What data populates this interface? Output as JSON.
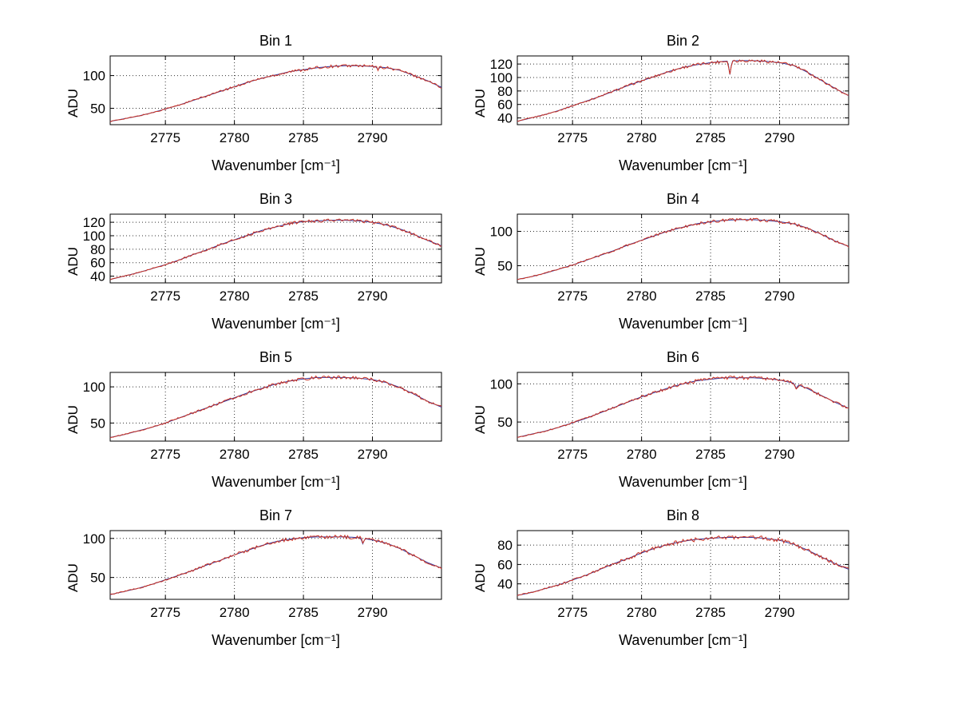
{
  "figure": {
    "background": "#ffffff",
    "description": "Eight line subplots (4 rows x 2 columns) of spectra per bin"
  },
  "chart_data": {
    "type": "line",
    "layout": "4x2-grid",
    "grid": "dotted",
    "x_label": "Wavenumber [cm⁻¹]",
    "y_label": "ADU",
    "xlim": [
      2771,
      2795
    ],
    "x_ticks": [
      2775,
      2780,
      2785,
      2790
    ],
    "x": [
      2771,
      2772,
      2773,
      2774,
      2775,
      2776,
      2777,
      2778,
      2779,
      2780,
      2781,
      2782,
      2783,
      2784,
      2785,
      2786,
      2787,
      2788,
      2789,
      2790,
      2791,
      2792,
      2793,
      2794,
      2795
    ],
    "colors": {
      "trace": "#cc3322",
      "under_trace": "#333399",
      "axis": "#000000",
      "grid": "#333333"
    },
    "noise_amp_adu": 1.6,
    "plots": [
      {
        "title": "Bin 1",
        "ylim": [
          25,
          130
        ],
        "y_ticks": [
          50,
          100
        ],
        "values": [
          30,
          34,
          38,
          43,
          49,
          55,
          62,
          69,
          76,
          83,
          90,
          96,
          101,
          106,
          109,
          112,
          114,
          115,
          115,
          114,
          112,
          108,
          100,
          92,
          82
        ],
        "dips": [
          {
            "x": 2790.4,
            "depth": 4
          }
        ]
      },
      {
        "title": "Bin 2",
        "ylim": [
          30,
          132
        ],
        "y_ticks": [
          40,
          60,
          80,
          100,
          120
        ],
        "values": [
          35,
          40,
          45,
          51,
          58,
          65,
          72,
          80,
          88,
          95,
          102,
          109,
          115,
          119,
          122,
          124,
          125,
          125,
          124,
          122,
          118,
          108,
          96,
          84,
          73
        ],
        "dips": [
          {
            "x": 2786.4,
            "depth": 20
          }
        ]
      },
      {
        "title": "Bin 3",
        "ylim": [
          30,
          132
        ],
        "y_ticks": [
          40,
          60,
          80,
          100,
          120
        ],
        "values": [
          35,
          40,
          45,
          51,
          57,
          64,
          72,
          79,
          87,
          94,
          101,
          108,
          113,
          118,
          121,
          122,
          123,
          123,
          122,
          120,
          116,
          110,
          102,
          93,
          85
        ],
        "dips": []
      },
      {
        "title": "Bin 4",
        "ylim": [
          25,
          125
        ],
        "y_ticks": [
          50,
          100
        ],
        "values": [
          30,
          34,
          39,
          45,
          51,
          58,
          65,
          72,
          80,
          87,
          94,
          101,
          106,
          111,
          114,
          116,
          117,
          117,
          116,
          114,
          111,
          105,
          96,
          86,
          78
        ],
        "dips": []
      },
      {
        "title": "Bin 5",
        "ylim": [
          25,
          120
        ],
        "y_ticks": [
          50,
          100
        ],
        "values": [
          30,
          34,
          39,
          44,
          50,
          57,
          64,
          71,
          78,
          85,
          92,
          98,
          104,
          108,
          111,
          113,
          113,
          113,
          112,
          110,
          106,
          99,
          90,
          80,
          72
        ],
        "dips": []
      },
      {
        "title": "Bin 6",
        "ylim": [
          25,
          115
        ],
        "y_ticks": [
          50,
          100
        ],
        "values": [
          30,
          34,
          38,
          43,
          49,
          55,
          62,
          69,
          76,
          83,
          89,
          95,
          100,
          104,
          106,
          108,
          108,
          108,
          107,
          105,
          101,
          94,
          85,
          76,
          68
        ],
        "dips": [
          {
            "x": 2791.2,
            "depth": 6
          }
        ]
      },
      {
        "title": "Bin 7",
        "ylim": [
          22,
          110
        ],
        "y_ticks": [
          50,
          100
        ],
        "values": [
          28,
          32,
          36,
          41,
          47,
          53,
          59,
          66,
          72,
          79,
          85,
          91,
          96,
          99,
          101,
          102,
          102,
          102,
          101,
          98,
          94,
          87,
          78,
          69,
          62
        ],
        "dips": [
          {
            "x": 2789.3,
            "depth": 7
          }
        ]
      },
      {
        "title": "Bin 8",
        "ylim": [
          24,
          95
        ],
        "y_ticks": [
          40,
          60,
          80
        ],
        "values": [
          28,
          31,
          35,
          39,
          44,
          49,
          55,
          61,
          66,
          72,
          77,
          81,
          84,
          86,
          87,
          88,
          88,
          88,
          87,
          85,
          81,
          75,
          68,
          61,
          55
        ],
        "dips": []
      }
    ]
  }
}
